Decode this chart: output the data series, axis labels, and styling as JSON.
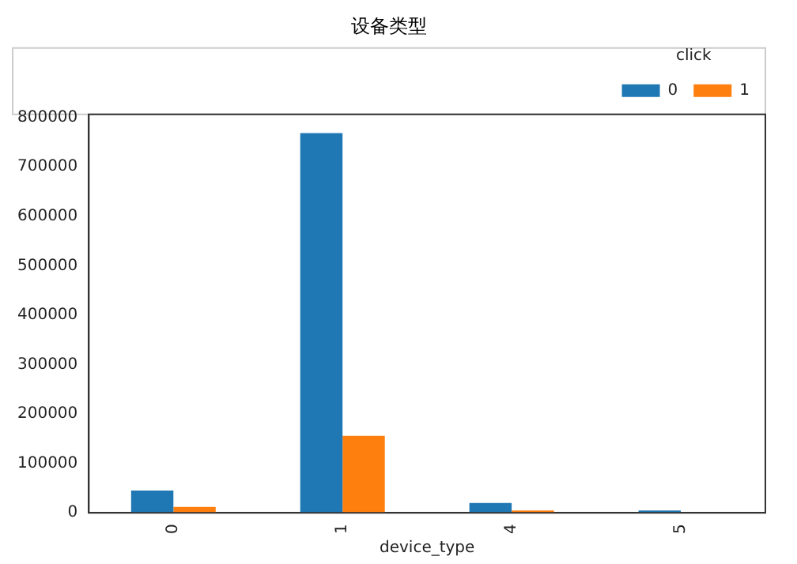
{
  "chart_data": {
    "type": "bar",
    "title": "设备类型",
    "xlabel": "device_type",
    "legend_title": "click",
    "categories": [
      "0",
      "1",
      "4",
      "5"
    ],
    "series": [
      {
        "name": "0",
        "color": "#1f77b4",
        "values": [
          45000,
          768000,
          20000,
          5000
        ]
      },
      {
        "name": "1",
        "color": "#ff7f0e",
        "values": [
          12000,
          156000,
          5000,
          0
        ]
      }
    ],
    "ylim": [
      0,
      806000
    ],
    "yticks": [
      0,
      100000,
      200000,
      300000,
      400000,
      500000,
      600000,
      700000,
      800000
    ],
    "grid": false,
    "legend": "top right"
  }
}
